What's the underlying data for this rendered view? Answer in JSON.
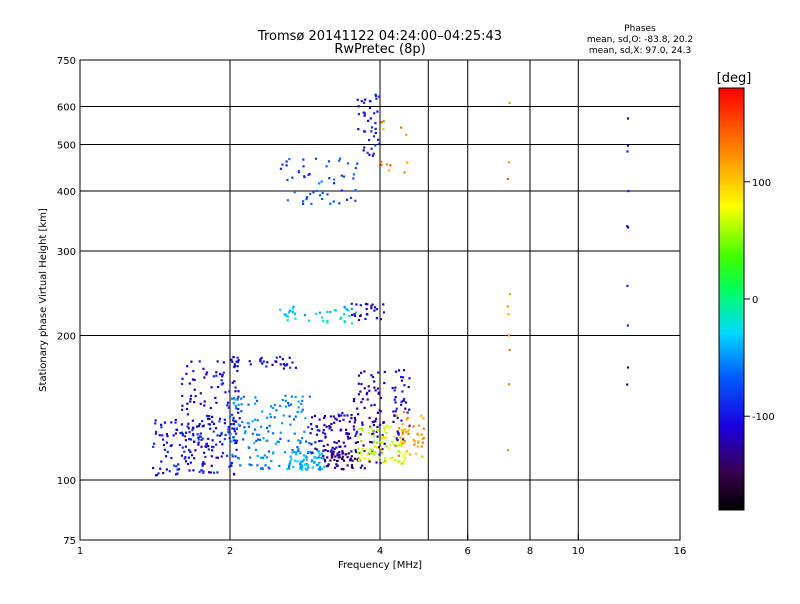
{
  "header": {
    "title": "Tromsø 20141122 04:24:00–04:25:43",
    "subtitle": "RwPretec (8p)",
    "phases_title": "Phases",
    "phases_o": "mean, sd,O: -83.8, 20.2",
    "phases_x": "mean, sd,X:  97.0, 24.3"
  },
  "colorbar": {
    "unit": "[deg]",
    "ticks": [
      {
        "value": 100,
        "label": "100"
      },
      {
        "value": 0,
        "label": "0"
      },
      {
        "value": -100,
        "label": "-100"
      }
    ],
    "range": [
      -180,
      180
    ]
  },
  "chart_data": {
    "type": "scatter",
    "title": "Tromsø 20141122 04:24:00–04:25:43",
    "subtitle": "RwPretec (8p)",
    "xlabel": "Frequency [MHz]",
    "ylabel": "Stationary phase Virtual Height [km]",
    "x_scale": "log",
    "y_scale": "log",
    "xlim": [
      1,
      16
    ],
    "ylim": [
      75,
      750
    ],
    "xticks": [
      {
        "value": 1,
        "label": "1"
      },
      {
        "value": 2,
        "label": "2"
      },
      {
        "value": 4,
        "label": "4"
      },
      {
        "value": 6,
        "label": "6"
      },
      {
        "value": 8,
        "label": "8"
      },
      {
        "value": 10,
        "label": "10"
      },
      {
        "value": 16,
        "label": "16"
      }
    ],
    "yticks": [
      {
        "value": 75,
        "label": "75"
      },
      {
        "value": 100,
        "label": "100"
      },
      {
        "value": 200,
        "label": "200"
      },
      {
        "value": 300,
        "label": "300"
      },
      {
        "value": 400,
        "label": "400"
      },
      {
        "value": 500,
        "label": "500"
      },
      {
        "value": 600,
        "label": "600"
      },
      {
        "value": 750,
        "label": "750"
      }
    ],
    "grid_x": [
      2,
      4,
      5,
      6,
      8,
      10,
      16
    ],
    "grid_y": [
      100,
      200,
      300,
      400,
      500,
      600
    ],
    "grid": true,
    "color_scale": "phase [deg], rainbow, -180 (black) to 180 (red)",
    "clusters": [
      {
        "x_range": [
          1.4,
          2.1
        ],
        "y_range": [
          102,
          135
        ],
        "phase_deg": -100,
        "count": 150
      },
      {
        "x_range": [
          1.6,
          2.1
        ],
        "y_range": [
          115,
          180
        ],
        "phase_deg": -110,
        "count": 110
      },
      {
        "x_range": [
          2.0,
          2.9
        ],
        "y_range": [
          105,
          150
        ],
        "phase_deg": -60,
        "count": 140
      },
      {
        "x_range": [
          2.6,
          3.1
        ],
        "y_range": [
          105,
          115
        ],
        "phase_deg": -40,
        "count": 60
      },
      {
        "x_range": [
          2.9,
          3.6
        ],
        "y_range": [
          112,
          138
        ],
        "phase_deg": -115,
        "count": 90
      },
      {
        "x_range": [
          3.1,
          3.6
        ],
        "y_range": [
          105,
          115
        ],
        "phase_deg": -140,
        "count": 45
      },
      {
        "x_range": [
          3.5,
          4.1
        ],
        "y_range": [
          105,
          170
        ],
        "phase_deg": -125,
        "count": 90
      },
      {
        "x_range": [
          3.6,
          4.5
        ],
        "y_range": [
          108,
          130
        ],
        "phase_deg": 70,
        "count": 90
      },
      {
        "x_range": [
          4.3,
          4.9
        ],
        "y_range": [
          112,
          140
        ],
        "phase_deg": 115,
        "count": 45
      },
      {
        "x_range": [
          4.2,
          4.6
        ],
        "y_range": [
          120,
          170
        ],
        "phase_deg": -110,
        "count": 40
      },
      {
        "x_range": [
          2.0,
          2.8
        ],
        "y_range": [
          170,
          182
        ],
        "phase_deg": -105,
        "count": 35
      },
      {
        "x_range": [
          2.5,
          3.6
        ],
        "y_range": [
          212,
          230
        ],
        "phase_deg": -30,
        "count": 40
      },
      {
        "x_range": [
          3.5,
          4.1
        ],
        "y_range": [
          215,
          235
        ],
        "phase_deg": -120,
        "count": 25
      },
      {
        "x_range": [
          2.5,
          3.6
        ],
        "y_range": [
          372,
          470
        ],
        "phase_deg": -75,
        "count": 55
      },
      {
        "x_range": [
          3.6,
          4.0
        ],
        "y_range": [
          470,
          640
        ],
        "phase_deg": -105,
        "count": 40
      },
      {
        "x_range": [
          4.0,
          4.6
        ],
        "y_range": [
          420,
          590
        ],
        "phase_deg": 125,
        "count": 12
      },
      {
        "x_range": [
          7.2,
          7.3
        ],
        "y_range": [
          110,
          640
        ],
        "phase_deg": 125,
        "count": 10
      },
      {
        "x_range": [
          12.5,
          12.6
        ],
        "y_range": [
          145,
          620
        ],
        "phase_deg": -110,
        "count": 10
      }
    ]
  }
}
